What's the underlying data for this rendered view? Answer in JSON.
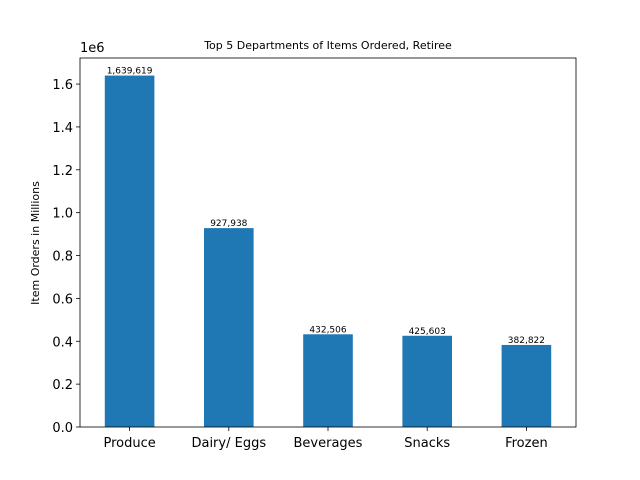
{
  "chart_data": {
    "type": "bar",
    "title": "Top 5 Departments of Items Ordered, Retiree",
    "xlabel": "",
    "ylabel": "Item Orders in Millions",
    "categories": [
      "Produce",
      "Dairy/ Eggs",
      "Beverages",
      "Snacks",
      "Frozen"
    ],
    "values": [
      1639619,
      927938,
      432506,
      425603,
      382822
    ],
    "bar_labels": [
      "1,639,619",
      "927,938",
      "432,506",
      "425,603",
      "382,822"
    ],
    "ylim": [
      0,
      1721600
    ],
    "yticks": [
      0,
      200000,
      400000,
      600000,
      800000,
      1000000,
      1200000,
      1400000,
      1600000
    ],
    "ytick_labels": [
      "0.0",
      "0.2",
      "0.4",
      "0.6",
      "0.8",
      "1.0",
      "1.2",
      "1.4",
      "1.6"
    ],
    "y_offset_label": "1e6",
    "bar_color": "#1f77b4",
    "grid": false
  }
}
